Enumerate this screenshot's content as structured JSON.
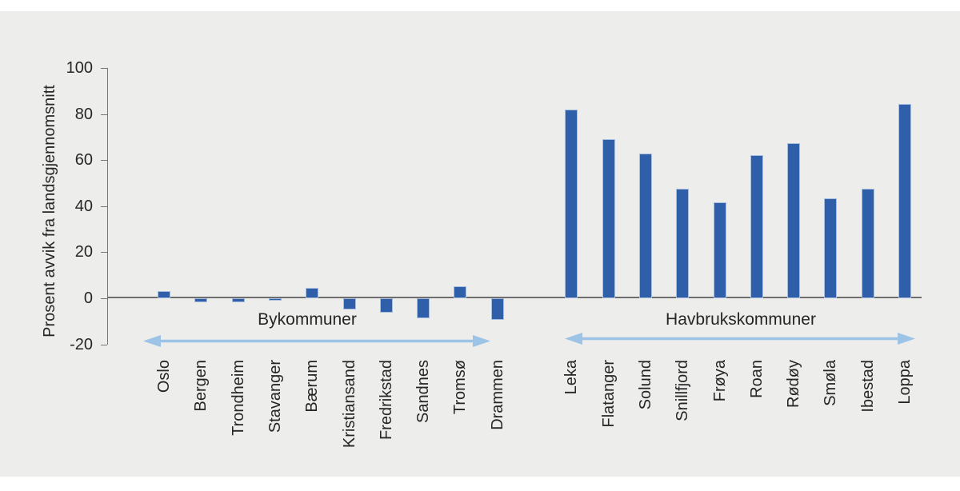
{
  "chart_data": {
    "type": "bar",
    "title": "",
    "xlabel": "",
    "ylabel": "Prosent avvik fra landsgjennomsnitt",
    "ylim": [
      -20,
      100
    ],
    "yticks": [
      100,
      80,
      60,
      40,
      20,
      0,
      -20
    ],
    "grid": false,
    "legend": "none",
    "background_color": "#EDEDEC",
    "bar_color": "#2F5FA8",
    "bar_border_color": "#A9BEDE",
    "arrow_color": "#9DC3E6",
    "groups": [
      {
        "label": "Bykommuner",
        "categories": [
          "Oslo",
          "Bergen",
          "Trondheim",
          "Stavanger",
          "Bærum",
          "Kristiansand",
          "Fredrikstad",
          "Sandnes",
          "Tromsø",
          "Drammen"
        ],
        "values": [
          3,
          -1.8,
          -1.7,
          -1,
          4.5,
          -5,
          -6.2,
          -8.6,
          5.3,
          -9.4
        ]
      },
      {
        "label": "Havbrukskommuner",
        "categories": [
          "Leka",
          "Flatanger",
          "Solund",
          "Snillfjord",
          "Frøya",
          "Roan",
          "Rødøy",
          "Smøla",
          "Ibestad",
          "Loppa"
        ],
        "values": [
          82,
          69,
          63,
          47.5,
          41.5,
          62,
          67.5,
          43.5,
          47.5,
          84.5
        ]
      }
    ]
  }
}
